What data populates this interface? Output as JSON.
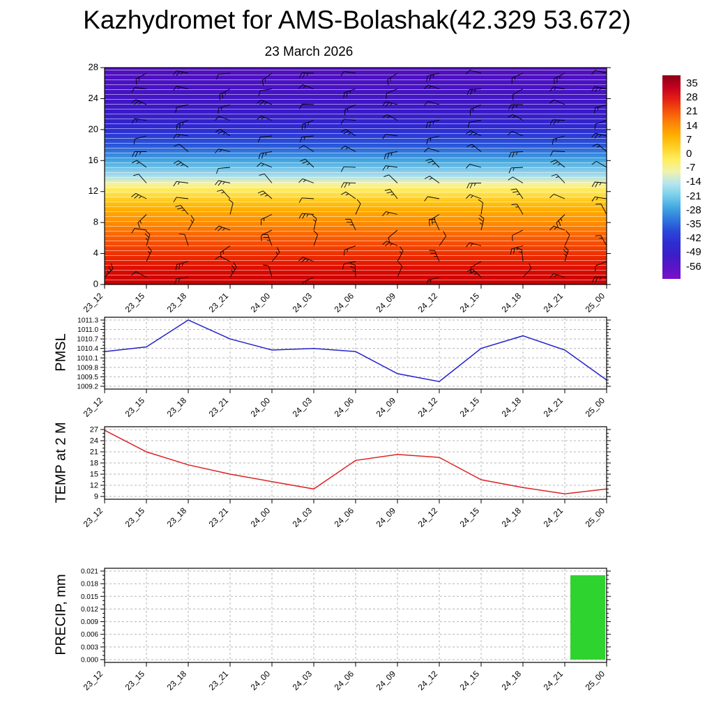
{
  "page": {
    "title": "Kazhydromet for AMS-Bolashak(42.329 53.672)",
    "subtitle": "23 March 2026"
  },
  "colorbar": {
    "tick_labels": [
      "35",
      "28",
      "21",
      "14",
      "7",
      "0",
      "-7",
      "-14",
      "-21",
      "-28",
      "-35",
      "-42",
      "-49",
      "-56"
    ],
    "gradient_top_to_bottom": [
      "#8b0016",
      "#c4001c",
      "#e62014",
      "#f4540a",
      "#fd8508",
      "#ffae00",
      "#ffd026",
      "#ffee5e",
      "#f2f2a8",
      "#b8e6ee",
      "#7ad0ec",
      "#44aae2",
      "#2f7ade",
      "#2a48d8",
      "#2d2dd2",
      "#3c1ec8",
      "#5a14c8",
      "#7a10c8"
    ]
  },
  "chart_data": [
    {
      "type": "heatmap",
      "name": "temp-wind-time-height-section",
      "title": "23 March 2026",
      "x_labels": [
        "23_12",
        "23_15",
        "23_18",
        "23_21",
        "24_00",
        "24_03",
        "24_06",
        "24_09",
        "24_12",
        "24_15",
        "24_18",
        "24_21",
        "25_00"
      ],
      "y_tick_labels_top_to_bottom": [
        "28",
        "24",
        "20",
        "16",
        "12",
        "8",
        "4",
        "0"
      ],
      "ylim": [
        0,
        28
      ],
      "fill_gradient_bottom_to_top": [
        {
          "pos": 0.0,
          "color": "#c80000"
        },
        {
          "pos": 0.07,
          "color": "#dc0c00"
        },
        {
          "pos": 0.14,
          "color": "#f03000"
        },
        {
          "pos": 0.215,
          "color": "#fa5c00"
        },
        {
          "pos": 0.285,
          "color": "#ff8c00"
        },
        {
          "pos": 0.357,
          "color": "#ffb400"
        },
        {
          "pos": 0.428,
          "color": "#ffe74e"
        },
        {
          "pos": 0.465,
          "color": "#f7f2a0"
        },
        {
          "pos": 0.5,
          "color": "#a8deee"
        },
        {
          "pos": 0.57,
          "color": "#42a8e0"
        },
        {
          "pos": 0.643,
          "color": "#2856d8"
        },
        {
          "pos": 0.714,
          "color": "#2d2cd0"
        },
        {
          "pos": 0.8,
          "color": "#3a1ac8"
        },
        {
          "pos": 0.9,
          "color": "#4812c4"
        },
        {
          "pos": 1.0,
          "color": "#5210c0"
        }
      ],
      "overlays": {
        "wind_barbs": true,
        "contour_lines_color": "#ffffff"
      }
    },
    {
      "type": "line",
      "name": "pmsl",
      "ylabel": "PMSL",
      "line_color": "#2222cc",
      "grid": "dashed",
      "x_labels": [
        "23_12",
        "23_15",
        "23_18",
        "23_21",
        "24_00",
        "24_03",
        "24_06",
        "24_09",
        "24_12",
        "24_15",
        "24_18",
        "24_21",
        "25_00"
      ],
      "y_tick_labels_top_to_bottom": [
        "1011.3",
        "1011.0",
        "1010.7",
        "1010.4",
        "1010.1",
        "1009.8",
        "1009.5",
        "1009.2"
      ],
      "ylim": [
        1009.2,
        1011.3
      ],
      "values": [
        1010.3,
        1010.45,
        1011.3,
        1010.7,
        1010.35,
        1010.4,
        1010.3,
        1009.6,
        1009.35,
        1010.4,
        1010.8,
        1010.35,
        1009.4
      ]
    },
    {
      "type": "line",
      "name": "temp-2m",
      "ylabel": "TEMP at 2 M",
      "line_color": "#dd2222",
      "grid": "dashed",
      "x_labels": [
        "23_12",
        "23_15",
        "23_18",
        "23_21",
        "24_00",
        "24_03",
        "24_06",
        "24_09",
        "24_12",
        "24_15",
        "24_18",
        "24_21",
        "25_00"
      ],
      "y_tick_labels_top_to_bottom": [
        "27",
        "24",
        "21",
        "18",
        "15",
        "12",
        "9"
      ],
      "ylim": [
        9,
        27
      ],
      "values": [
        26.8,
        21,
        17.5,
        15,
        13,
        11,
        18.7,
        20.3,
        19.5,
        13.5,
        11.4,
        9.7,
        11
      ]
    },
    {
      "type": "bar",
      "name": "precip",
      "ylabel": "PRECIP, mm",
      "bar_color": "#2fd32f",
      "grid": "dashed",
      "x_labels": [
        "23_12",
        "23_15",
        "23_18",
        "23_21",
        "24_00",
        "24_03",
        "24_06",
        "24_09",
        "24_12",
        "24_15",
        "24_18",
        "24_21",
        "25_00"
      ],
      "y_tick_labels_top_to_bottom": [
        "0.021",
        "0.018",
        "0.015",
        "0.012",
        "0.009",
        "0.006",
        "0.003",
        "0.000"
      ],
      "ylim": [
        0,
        0.021
      ],
      "values": [
        0,
        0,
        0,
        0,
        0,
        0,
        0,
        0,
        0,
        0,
        0,
        0,
        0.02
      ]
    }
  ]
}
